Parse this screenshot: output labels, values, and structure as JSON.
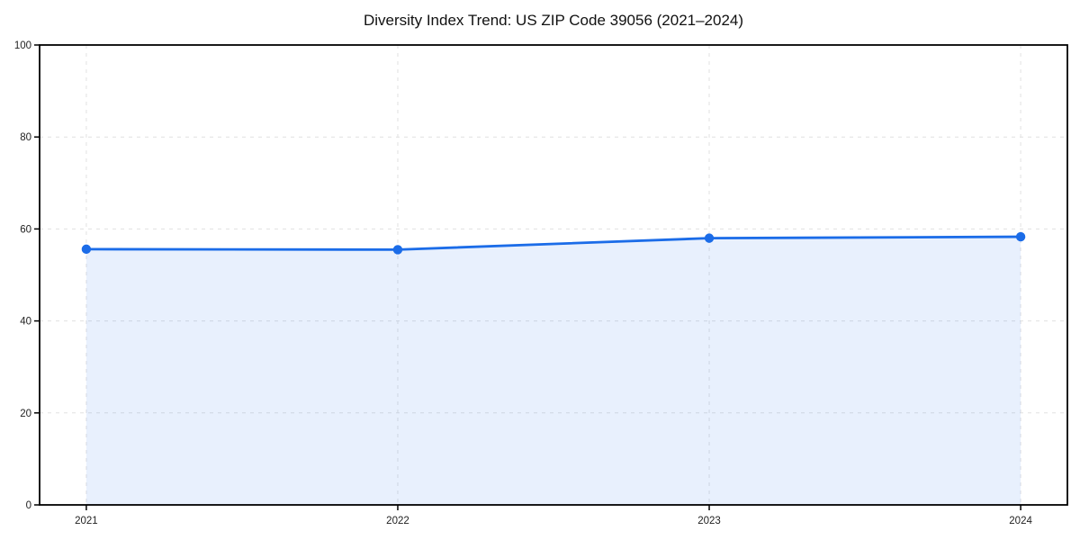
{
  "chart_data": {
    "type": "area",
    "title": "Diversity Index Trend: US ZIP Code 39056 (2021–2024)",
    "categories": [
      "2021",
      "2022",
      "2023",
      "2024"
    ],
    "x": [
      2021,
      2022,
      2023,
      2024
    ],
    "series": [
      {
        "name": "Diversity Index",
        "values": [
          55.6,
          55.5,
          58.0,
          58.3
        ]
      }
    ],
    "xlabel": "",
    "ylabel": "",
    "ylim": [
      0,
      100
    ],
    "yticks": [
      0,
      20,
      40,
      60,
      80,
      100
    ],
    "grid": "dashed-both-axes",
    "legend_position": "none",
    "marker_style": "filled-circle",
    "colors": {
      "line": "#1b6ce8",
      "marker": "#1b6ce8",
      "fill": "#1b6ce8",
      "fill_opacity": "0.10",
      "grid": "#e1e1e1",
      "spine": "#000000",
      "tick_label": "#222222",
      "title": "#111111",
      "background": "#ffffff"
    }
  }
}
